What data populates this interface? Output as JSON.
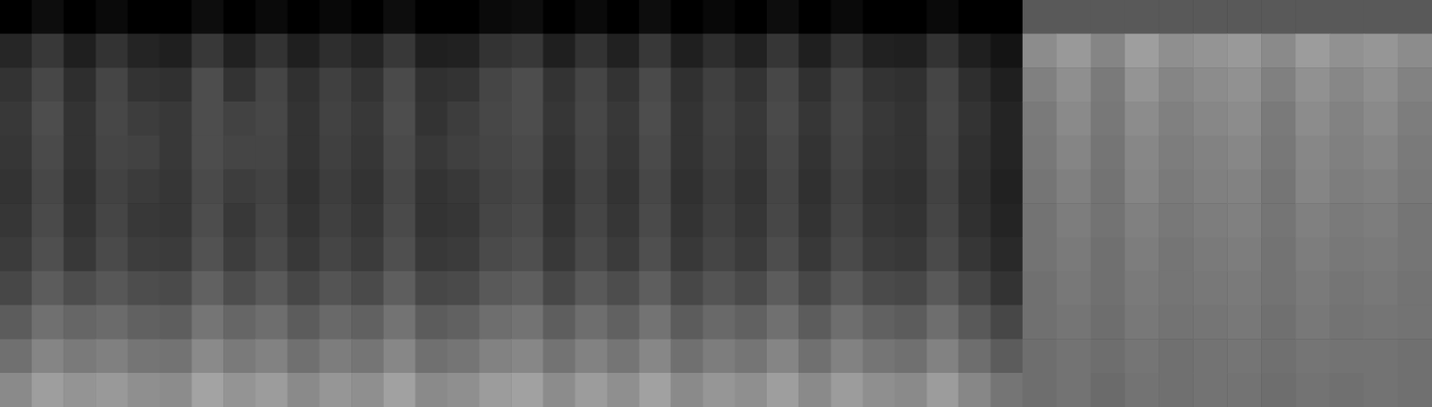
{
  "chart_data": [
    {
      "type": "heatmap",
      "tick_labels": false,
      "color_range": [
        0,
        1
      ],
      "values": [
        [
          0,
          0.05,
          0,
          0.04,
          0,
          0,
          0.05,
          0,
          0.04,
          0,
          0.03,
          0,
          0.05,
          0,
          0,
          0.04,
          0.05,
          0,
          0.04,
          0,
          0.05,
          0,
          0.03,
          0,
          0.05,
          0,
          0.04,
          0,
          0,
          0.04,
          0,
          0
        ],
        [
          0.15,
          0.22,
          0.12,
          0.2,
          0.14,
          0.12,
          0.22,
          0.13,
          0.2,
          0.12,
          0.18,
          0.14,
          0.22,
          0.12,
          0.13,
          0.2,
          0.22,
          0.12,
          0.2,
          0.13,
          0.22,
          0.12,
          0.18,
          0.13,
          0.21,
          0.12,
          0.2,
          0.13,
          0.12,
          0.2,
          0.12,
          0.08
        ],
        [
          0.2,
          0.28,
          0.18,
          0.27,
          0.2,
          0.19,
          0.3,
          0.2,
          0.27,
          0.19,
          0.25,
          0.2,
          0.29,
          0.19,
          0.2,
          0.27,
          0.3,
          0.2,
          0.27,
          0.2,
          0.29,
          0.19,
          0.25,
          0.2,
          0.28,
          0.19,
          0.27,
          0.2,
          0.19,
          0.27,
          0.18,
          0.12
        ],
        [
          0.22,
          0.3,
          0.2,
          0.28,
          0.24,
          0.22,
          0.3,
          0.26,
          0.28,
          0.2,
          0.26,
          0.22,
          0.3,
          0.2,
          0.24,
          0.28,
          0.3,
          0.21,
          0.28,
          0.22,
          0.3,
          0.2,
          0.26,
          0.22,
          0.29,
          0.21,
          0.28,
          0.22,
          0.2,
          0.28,
          0.2,
          0.14
        ],
        [
          0.21,
          0.29,
          0.2,
          0.27,
          0.26,
          0.22,
          0.3,
          0.27,
          0.27,
          0.2,
          0.25,
          0.21,
          0.29,
          0.22,
          0.25,
          0.27,
          0.29,
          0.2,
          0.27,
          0.21,
          0.29,
          0.2,
          0.25,
          0.21,
          0.28,
          0.2,
          0.27,
          0.21,
          0.2,
          0.27,
          0.19,
          0.14
        ],
        [
          0.2,
          0.28,
          0.19,
          0.26,
          0.23,
          0.21,
          0.29,
          0.24,
          0.26,
          0.19,
          0.24,
          0.2,
          0.28,
          0.2,
          0.22,
          0.26,
          0.28,
          0.19,
          0.26,
          0.2,
          0.28,
          0.19,
          0.24,
          0.2,
          0.27,
          0.19,
          0.26,
          0.2,
          0.19,
          0.26,
          0.18,
          0.13
        ],
        [
          0.21,
          0.29,
          0.2,
          0.27,
          0.22,
          0.21,
          0.3,
          0.22,
          0.27,
          0.2,
          0.25,
          0.21,
          0.29,
          0.2,
          0.21,
          0.27,
          0.29,
          0.2,
          0.27,
          0.21,
          0.29,
          0.2,
          0.25,
          0.21,
          0.28,
          0.2,
          0.27,
          0.21,
          0.2,
          0.27,
          0.19,
          0.14
        ],
        [
          0.23,
          0.31,
          0.22,
          0.29,
          0.24,
          0.23,
          0.32,
          0.24,
          0.29,
          0.22,
          0.27,
          0.23,
          0.31,
          0.22,
          0.23,
          0.29,
          0.31,
          0.22,
          0.29,
          0.23,
          0.31,
          0.22,
          0.27,
          0.23,
          0.3,
          0.22,
          0.29,
          0.23,
          0.22,
          0.29,
          0.21,
          0.16
        ],
        [
          0.28,
          0.36,
          0.3,
          0.34,
          0.3,
          0.29,
          0.38,
          0.3,
          0.35,
          0.28,
          0.33,
          0.29,
          0.37,
          0.28,
          0.29,
          0.35,
          0.37,
          0.28,
          0.35,
          0.3,
          0.37,
          0.28,
          0.33,
          0.29,
          0.36,
          0.28,
          0.35,
          0.29,
          0.28,
          0.35,
          0.27,
          0.2
        ],
        [
          0.36,
          0.44,
          0.4,
          0.42,
          0.38,
          0.37,
          0.46,
          0.4,
          0.43,
          0.36,
          0.41,
          0.38,
          0.45,
          0.36,
          0.38,
          0.43,
          0.45,
          0.37,
          0.43,
          0.38,
          0.45,
          0.36,
          0.41,
          0.38,
          0.44,
          0.36,
          0.43,
          0.38,
          0.36,
          0.43,
          0.35,
          0.28
        ],
        [
          0.44,
          0.52,
          0.48,
          0.5,
          0.46,
          0.45,
          0.54,
          0.48,
          0.51,
          0.44,
          0.49,
          0.46,
          0.53,
          0.44,
          0.46,
          0.51,
          0.53,
          0.45,
          0.51,
          0.46,
          0.53,
          0.44,
          0.49,
          0.46,
          0.52,
          0.44,
          0.51,
          0.46,
          0.44,
          0.51,
          0.43,
          0.36
        ],
        [
          0.54,
          0.62,
          0.58,
          0.6,
          0.56,
          0.55,
          0.64,
          0.58,
          0.61,
          0.54,
          0.59,
          0.56,
          0.63,
          0.54,
          0.56,
          0.61,
          0.63,
          0.55,
          0.61,
          0.56,
          0.63,
          0.54,
          0.59,
          0.56,
          0.62,
          0.54,
          0.61,
          0.56,
          0.54,
          0.61,
          0.53,
          0.46
        ]
      ]
    },
    {
      "type": "heatmap",
      "tick_labels": false,
      "color_range": [
        0,
        1
      ],
      "values": [
        [
          0.35,
          0.35,
          0.35,
          0.35,
          0.35,
          0.35,
          0.35,
          0.35,
          0.35,
          0.35,
          0.35,
          0.35
        ],
        [
          0.55,
          0.6,
          0.52,
          0.62,
          0.56,
          0.58,
          0.6,
          0.54,
          0.61,
          0.57,
          0.59,
          0.55
        ],
        [
          0.5,
          0.56,
          0.48,
          0.58,
          0.52,
          0.55,
          0.57,
          0.5,
          0.57,
          0.53,
          0.56,
          0.51
        ],
        [
          0.48,
          0.54,
          0.47,
          0.55,
          0.5,
          0.53,
          0.55,
          0.48,
          0.55,
          0.51,
          0.54,
          0.49
        ],
        [
          0.47,
          0.52,
          0.46,
          0.53,
          0.49,
          0.51,
          0.53,
          0.47,
          0.53,
          0.5,
          0.52,
          0.48
        ],
        [
          0.46,
          0.5,
          0.45,
          0.52,
          0.48,
          0.5,
          0.51,
          0.46,
          0.52,
          0.49,
          0.5,
          0.47
        ],
        [
          0.45,
          0.49,
          0.45,
          0.5,
          0.47,
          0.49,
          0.5,
          0.46,
          0.5,
          0.48,
          0.49,
          0.46
        ],
        [
          0.45,
          0.48,
          0.44,
          0.49,
          0.46,
          0.48,
          0.49,
          0.45,
          0.49,
          0.47,
          0.48,
          0.46
        ],
        [
          0.44,
          0.47,
          0.44,
          0.48,
          0.46,
          0.47,
          0.48,
          0.45,
          0.48,
          0.46,
          0.47,
          0.45
        ],
        [
          0.44,
          0.46,
          0.43,
          0.47,
          0.45,
          0.46,
          0.47,
          0.44,
          0.47,
          0.45,
          0.46,
          0.45
        ],
        [
          0.43,
          0.45,
          0.43,
          0.46,
          0.44,
          0.45,
          0.46,
          0.44,
          0.46,
          0.45,
          0.45,
          0.44
        ],
        [
          0.43,
          0.45,
          0.42,
          0.45,
          0.44,
          0.45,
          0.45,
          0.43,
          0.45,
          0.44,
          0.45,
          0.44
        ]
      ]
    }
  ]
}
